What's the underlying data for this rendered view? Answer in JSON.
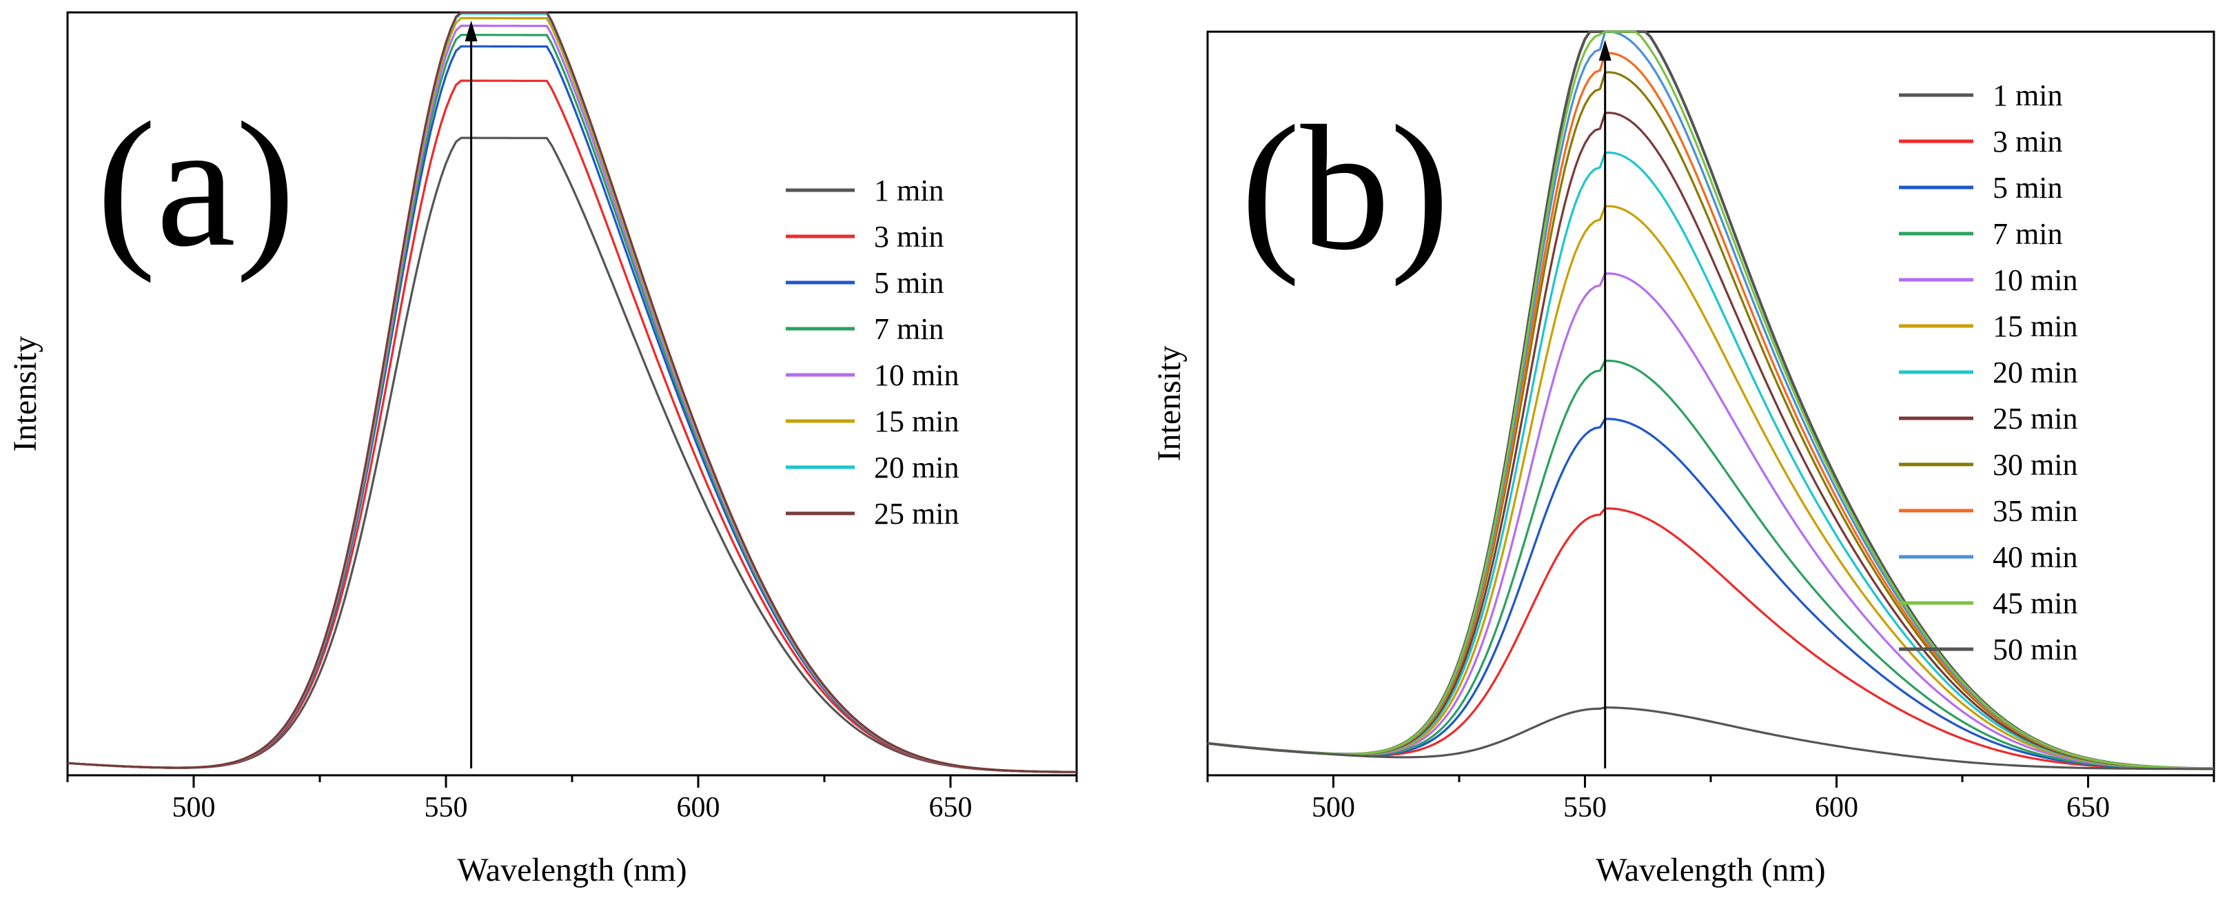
{
  "chart_data": [
    {
      "type": "line",
      "panel_label": "(a)",
      "xlabel": "Wavelength (nm)",
      "ylabel": "Intensity",
      "xlim": [
        475,
        675
      ],
      "ylim": [
        0,
        1.0
      ],
      "xticks": [
        500,
        550,
        600,
        650
      ],
      "xtick_labels": [
        "500",
        "550",
        "600",
        "650"
      ],
      "legend_position": "right",
      "annotation": "upward arrow at ~555 nm",
      "arrow_x": 555,
      "peak_x": 555,
      "tail": 0.055,
      "series": [
        {
          "name": "1 min",
          "label": "1 min",
          "color": "#555555",
          "peak": 0.835
        },
        {
          "name": "3 min",
          "label": "3 min",
          "color": "#ee2a2a",
          "peak": 0.91
        },
        {
          "name": "5 min",
          "label": "5 min",
          "color": "#1f57c9",
          "peak": 0.955
        },
        {
          "name": "7 min",
          "label": "7 min",
          "color": "#2ca160",
          "peak": 0.97
        },
        {
          "name": "10 min",
          "label": "10 min",
          "color": "#b36ef2",
          "peak": 0.982
        },
        {
          "name": "15 min",
          "label": "15 min",
          "color": "#c9a000",
          "peak": 0.992
        },
        {
          "name": "20 min",
          "label": "20 min",
          "color": "#1dc6cf",
          "peak": 0.998
        },
        {
          "name": "25 min",
          "label": "25 min",
          "color": "#7a3a3a",
          "peak": 1.0
        }
      ]
    },
    {
      "type": "line",
      "panel_label": "(b)",
      "xlabel": "Wavelength (nm)",
      "ylabel": "Intensity",
      "xlim": [
        475,
        675
      ],
      "ylim": [
        0,
        1.0
      ],
      "xticks": [
        500,
        550,
        600,
        650
      ],
      "xtick_labels": [
        "500",
        "550",
        "600",
        "650"
      ],
      "legend_position": "top-right",
      "annotation": "upward arrow at ~554 nm",
      "arrow_x": 554,
      "peak_x": 553,
      "tail": 0.035,
      "series": [
        {
          "name": "1 min",
          "label": "1 min",
          "color": "#555555",
          "peak": 0.995
        },
        {
          "name": "3 min",
          "label": "3 min",
          "color": "#ee2a2a",
          "peak": 0.335
        },
        {
          "name": "5 min",
          "label": "5 min",
          "color": "#1f57c9",
          "peak": 0.452
        },
        {
          "name": "7 min",
          "label": "7 min",
          "color": "#2ca160",
          "peak": 0.528
        },
        {
          "name": "10 min",
          "label": "10 min",
          "color": "#b36ef2",
          "peak": 0.642
        },
        {
          "name": "15 min",
          "label": "15 min",
          "color": "#c9a000",
          "peak": 0.73
        },
        {
          "name": "20 min",
          "label": "20 min",
          "color": "#1dc6cf",
          "peak": 0.8
        },
        {
          "name": "25 min",
          "label": "25 min",
          "color": "#7a3a3a",
          "peak": 0.852
        },
        {
          "name": "30 min",
          "label": "30 min",
          "color": "#8a7a00",
          "peak": 0.905
        },
        {
          "name": "35 min",
          "label": "35 min",
          "color": "#f26b21",
          "peak": 0.93
        },
        {
          "name": "40 min",
          "label": "40 min",
          "color": "#4a90d9",
          "peak": 0.958
        },
        {
          "name": "45 min",
          "label": "45 min",
          "color": "#7cc242",
          "peak": 0.978
        },
        {
          "name": "50 min",
          "label": "50 min",
          "color": "#555555",
          "peak": 0.075
        }
      ]
    }
  ]
}
